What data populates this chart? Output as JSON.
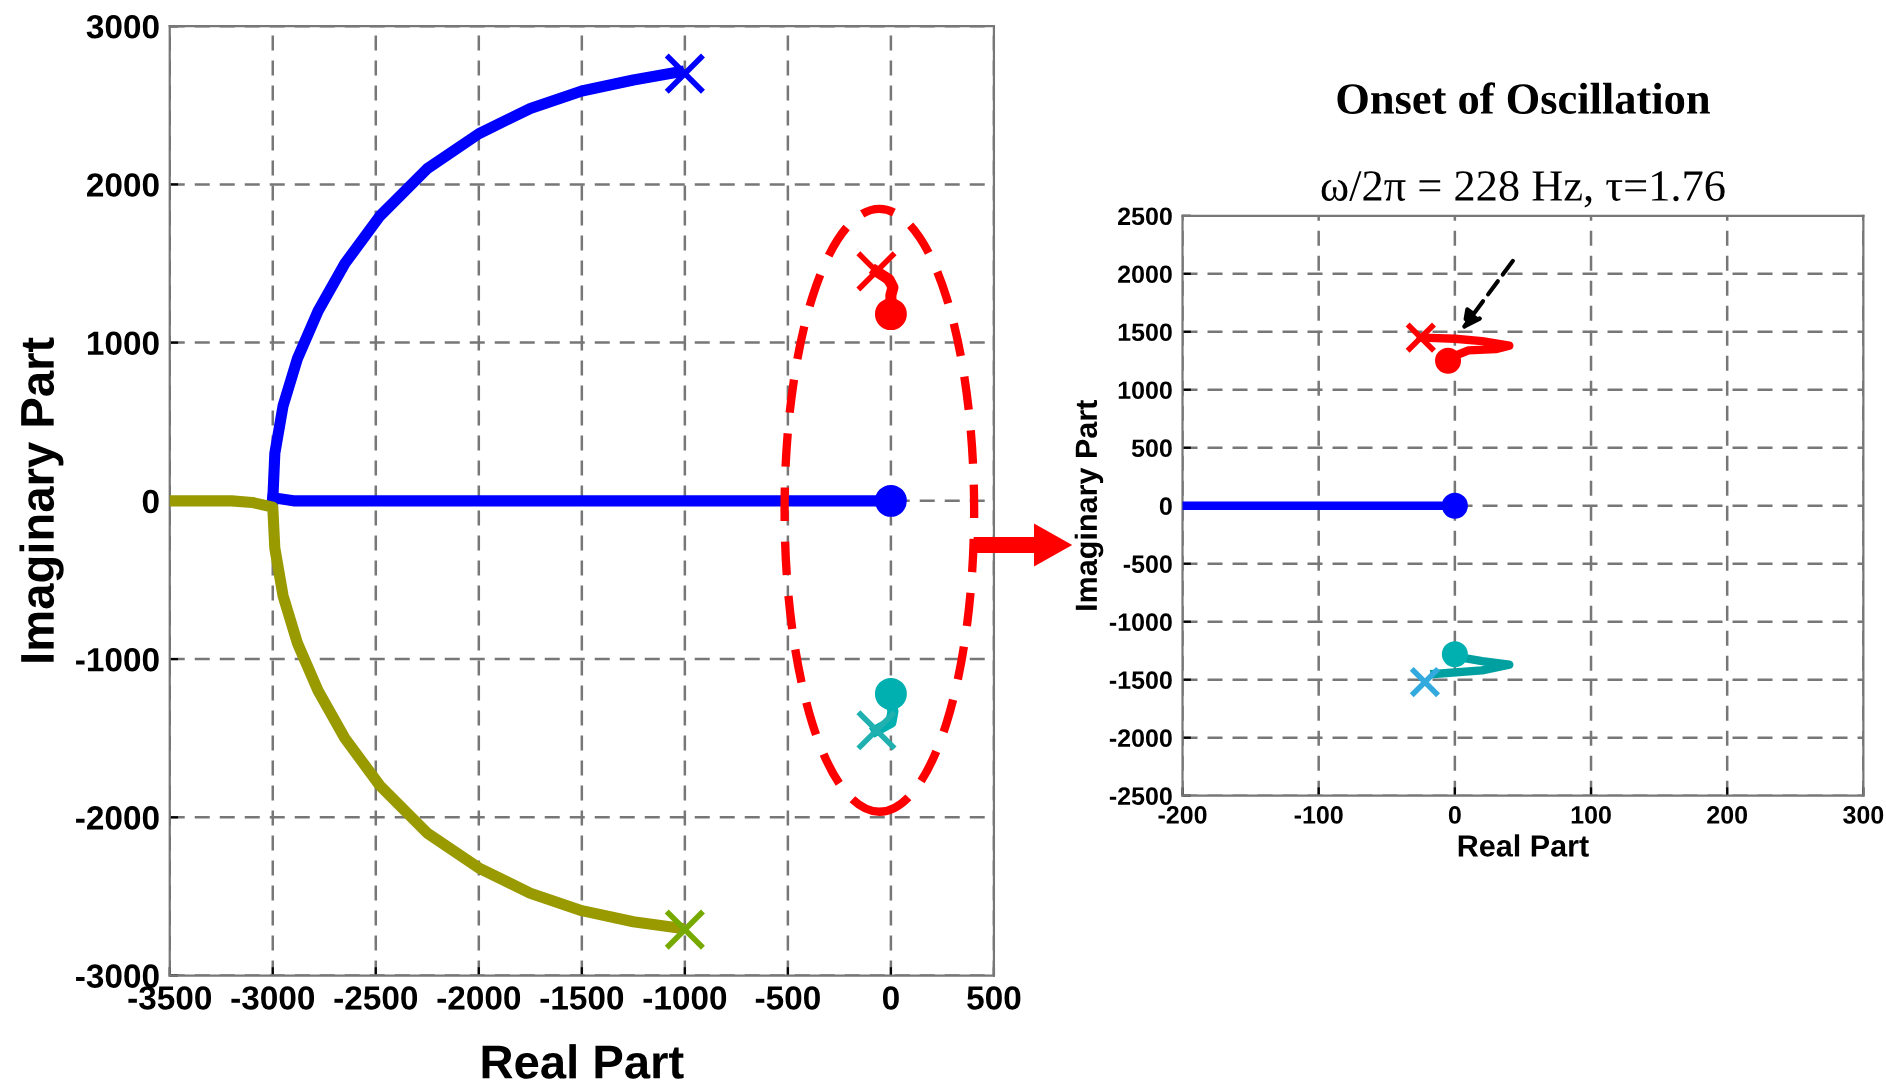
{
  "chart_data": [
    {
      "type": "line",
      "xlabel": "Real Part",
      "ylabel": "Imaginary Part",
      "xlim": [
        -3500,
        500
      ],
      "ylim": [
        -3000,
        3000
      ],
      "xticks": [
        -3500,
        -3000,
        -2500,
        -2000,
        -1500,
        -1000,
        -500,
        0,
        {
          "value": 500,
          "label": "500"
        }
      ],
      "yticks": [
        -3000,
        -2000,
        -1000,
        0,
        1000,
        2000,
        3000
      ],
      "grid": true,
      "legend": false,
      "line_style": "solid",
      "series": [
        {
          "color": "#0000ff",
          "x": [
            -3000,
            -2990,
            -2950,
            -2880,
            -2780,
            -2650,
            -2480,
            -2250,
            -2000,
            -1750,
            -1500,
            -1250,
            -1030
          ],
          "values": [
            0,
            300,
            600,
            900,
            1200,
            1500,
            1800,
            2100,
            2320,
            2480,
            2590,
            2660,
            2710
          ]
        },
        {
          "color": "#0000ff",
          "x": [
            -3000,
            -2900,
            -2700,
            0
          ],
          "values": [
            20,
            0,
            0,
            0
          ]
        },
        {
          "color": "#999900",
          "x": [
            -3500,
            -3200,
            -3100,
            -3000,
            -2990,
            -2950,
            -2880,
            -2780,
            -2650,
            -2480,
            -2250,
            -2000,
            -1750,
            -1500,
            -1250,
            -1030
          ],
          "values": [
            0,
            0,
            -10,
            -40,
            -300,
            -600,
            -900,
            -1200,
            -1500,
            -1800,
            -2100,
            -2320,
            -2480,
            -2590,
            -2660,
            -2700
          ]
        },
        {
          "color": "#ff0000",
          "x": [
            -70,
            -10,
            10,
            0,
            0
          ],
          "values": [
            1450,
            1400,
            1350,
            1300,
            1200
          ]
        },
        {
          "color": "#00b0b0",
          "x": [
            -70,
            0,
            10,
            0,
            0
          ],
          "values": [
            -1450,
            -1400,
            -1330,
            -1280,
            -1220
          ]
        },
        {
          "type": "scatter",
          "marker": "cross",
          "color": "#0000ff",
          "x": [
            -1000
          ],
          "values": [
            2700
          ]
        },
        {
          "type": "scatter",
          "marker": "cross",
          "color": "#77aa00",
          "x": [
            -1000
          ],
          "values": [
            -2710
          ]
        },
        {
          "type": "scatter",
          "marker": "cross",
          "color": "#ff0000",
          "x": [
            -70
          ],
          "values": [
            1450
          ]
        },
        {
          "type": "scatter",
          "marker": "cross",
          "color": "#20b0b0",
          "x": [
            -70
          ],
          "values": [
            -1450
          ]
        },
        {
          "type": "scatter",
          "marker": "circle",
          "color": "#ff0000",
          "x": [
            0
          ],
          "values": [
            1180
          ]
        },
        {
          "type": "scatter",
          "marker": "circle",
          "color": "#0000ff",
          "x": [
            0
          ],
          "values": [
            0
          ]
        },
        {
          "type": "scatter",
          "marker": "circle",
          "color": "#00b0b0",
          "x": [
            0
          ],
          "values": [
            -1220
          ]
        }
      ]
    },
    {
      "type": "line",
      "title": "Onset of Oscillation",
      "subtitle": "ω/2π = 228 Hz, τ=1.76",
      "xlabel": "Real Part",
      "ylabel": "Imaginary Part",
      "xlim": [
        -200,
        300
      ],
      "ylim": [
        -2500,
        2500
      ],
      "xticks": [
        -200,
        -100,
        0,
        100,
        200,
        300
      ],
      "yticks": [
        -2500,
        -2000,
        -1500,
        -1000,
        -500,
        0,
        500,
        1000,
        1500,
        2000,
        2500
      ],
      "grid": true,
      "legend": false,
      "line_style": "solid",
      "series": [
        {
          "color": "#0000ff",
          "x": [
            -200,
            0
          ],
          "values": [
            0,
            0
          ]
        },
        {
          "color": "#ff0000",
          "x": [
            -25,
            0,
            20,
            40,
            30,
            10,
            -5
          ],
          "values": [
            1450,
            1440,
            1420,
            1380,
            1350,
            1340,
            1270
          ]
        },
        {
          "color": "#00a0a0",
          "x": [
            -15,
            20,
            40,
            20,
            5,
            0
          ],
          "values": [
            -1450,
            -1420,
            -1370,
            -1340,
            -1310,
            -1280
          ]
        },
        {
          "type": "scatter",
          "marker": "cross",
          "color": "#ff0000",
          "x": [
            -25
          ],
          "values": [
            1450
          ]
        },
        {
          "type": "scatter",
          "marker": "cross",
          "color": "#33aadd",
          "x": [
            -22
          ],
          "values": [
            -1520
          ]
        },
        {
          "type": "scatter",
          "marker": "circle",
          "color": "#ff0000",
          "x": [
            -5
          ],
          "values": [
            1250
          ]
        },
        {
          "type": "scatter",
          "marker": "circle",
          "color": "#0000ff",
          "x": [
            0
          ],
          "values": [
            0
          ]
        },
        {
          "type": "scatter",
          "marker": "circle",
          "color": "#00b0b0",
          "x": [
            0
          ],
          "values": [
            -1280
          ]
        }
      ]
    }
  ]
}
